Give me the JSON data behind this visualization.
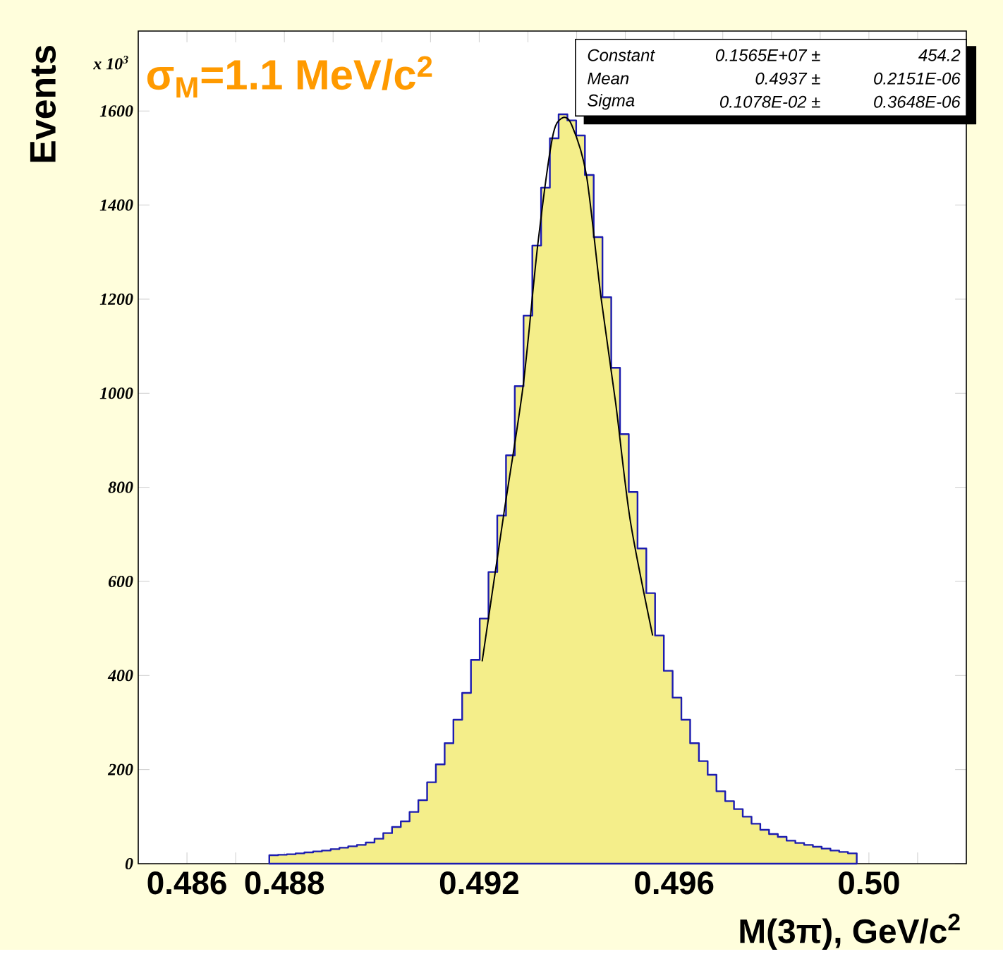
{
  "chart_data": {
    "type": "histogram",
    "xlabel": "M(3π), GeV/c$^{2}$",
    "ylabel": "Events",
    "annotations": [
      "σ$_{M}$=1.1 MeV/c$^{2}$",
      "x 10$^{3}$",
      "Constant",
      "0.1565E+07 ±",
      "454.2",
      "Mean",
      "0.4937 ±",
      "0.2151E-06",
      "Sigma",
      "0.1078E-02 ±",
      "0.3648E-06"
    ],
    "xlim": [
      0.485,
      0.502
    ],
    "ylim": [
      0,
      1770
    ],
    "xticks": [
      0.486,
      {
        "value": 0.487,
        "label": null
      },
      0.488,
      {
        "value": 0.489,
        "label": null
      },
      {
        "value": 0.49,
        "label": null
      },
      {
        "value": 0.491,
        "label": null
      },
      0.492,
      {
        "value": 0.493,
        "label": null
      },
      {
        "value": 0.494,
        "label": null
      },
      {
        "value": 0.495,
        "label": null
      },
      0.496,
      {
        "value": 0.497,
        "label": null
      },
      {
        "value": 0.498,
        "label": null
      },
      {
        "value": 0.499,
        "label": null
      },
      {
        "value": 0.5,
        "label": "0.50"
      },
      {
        "value": 0.501,
        "label": null
      }
    ],
    "yticks": [
      0,
      200,
      400,
      600,
      800,
      1000,
      1200,
      1400,
      1600
    ],
    "series": [
      {
        "color": "#f4ee8a",
        "bins": [
          0.48769,
          0.48787,
          0.48805,
          0.48823,
          0.48841,
          0.48859,
          0.48877,
          0.48895,
          0.48913,
          0.48931,
          0.48949,
          0.48967,
          0.48985,
          0.49003,
          0.49021,
          0.49039,
          0.49057,
          0.49075,
          0.49093,
          0.49111,
          0.49129,
          0.49147,
          0.49165,
          0.49183,
          0.49201,
          0.49219,
          0.49237,
          0.49255,
          0.49273,
          0.49291,
          0.49309,
          0.49327,
          0.49345,
          0.49363,
          0.49381,
          0.49399,
          0.49417,
          0.49435,
          0.49453,
          0.49471,
          0.49489,
          0.49507,
          0.49525,
          0.49543,
          0.49561,
          0.49579,
          0.49597,
          0.49615,
          0.49633,
          0.49651,
          0.49669,
          0.49687,
          0.49705,
          0.49723,
          0.49741,
          0.49759,
          0.49777,
          0.49795,
          0.49813,
          0.49831,
          0.49849,
          0.49867,
          0.49885,
          0.49903,
          0.49921,
          0.49939,
          0.49957,
          0.49975
        ],
        "values": [
          18,
          19,
          20,
          22,
          24,
          26,
          28,
          31,
          34,
          37,
          40,
          45,
          53,
          65,
          78,
          90,
          110,
          135,
          173,
          211,
          256,
          306,
          363,
          433,
          521,
          620,
          740,
          868,
          1015,
          1165,
          1314,
          1437,
          1542,
          1593,
          1580,
          1548,
          1464,
          1332,
          1204,
          1054,
          913,
          790,
          670,
          575,
          485,
          410,
          353,
          306,
          256,
          218,
          189,
          154,
          133,
          116,
          100,
          85,
          72,
          63,
          57,
          49,
          44,
          40,
          36,
          32,
          28,
          25,
          22
        ]
      },
      {
        "type": "line",
        "color": "#000000",
        "x": [
          0.49206,
          0.4925,
          0.4929,
          0.4932,
          0.4935,
          0.4937,
          0.4939,
          0.4942,
          0.4945,
          0.4948,
          0.4951,
          0.49556
        ],
        "values": [
          430,
          740,
          1015,
          1314,
          1542,
          1585,
          1570,
          1464,
          1204,
          980,
          730,
          485
        ]
      }
    ]
  }
}
